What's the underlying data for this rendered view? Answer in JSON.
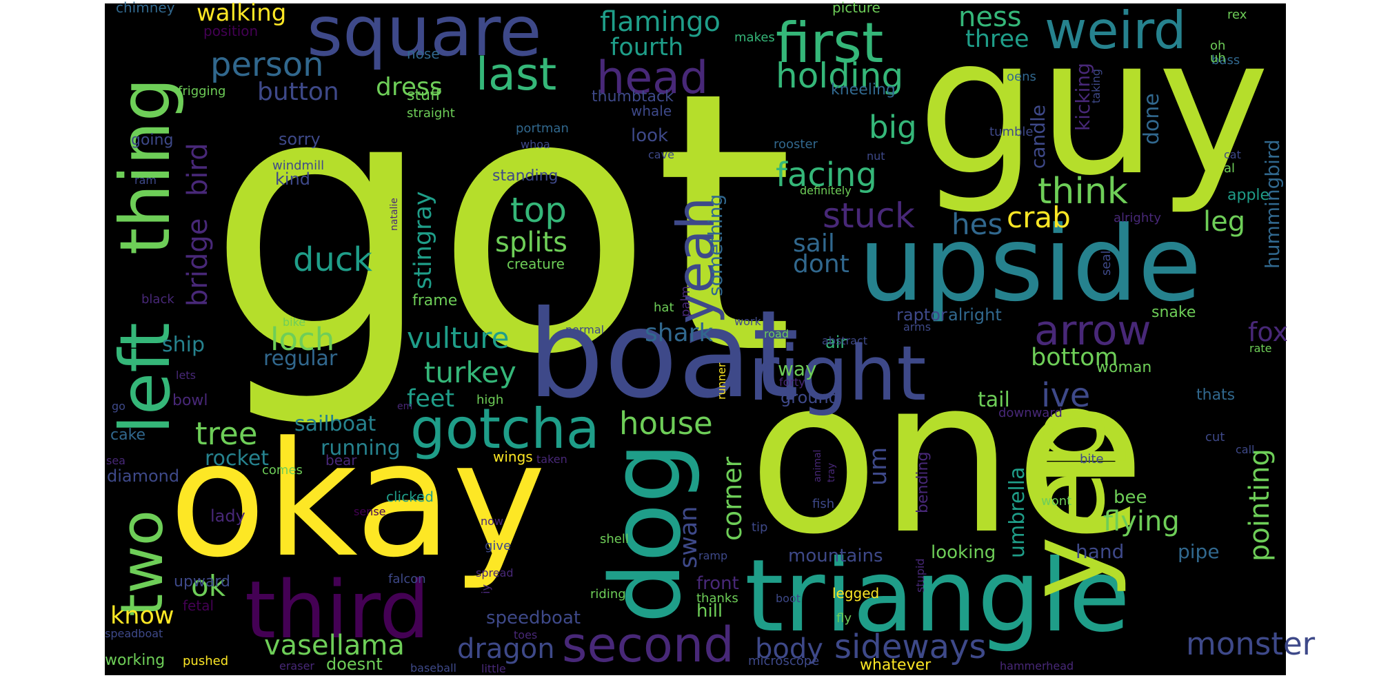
{
  "palette": {
    "yellow": "#fde725",
    "lime": "#b5de2b",
    "green": "#6ece58",
    "sea": "#35b779",
    "teal": "#1f9e89",
    "cyan": "#26828e",
    "blue": "#31688e",
    "indigo": "#3e4989",
    "purple": "#482878",
    "violet": "#440154",
    "background": "#000000"
  },
  "words": [
    {
      "text": "got",
      "color": "lime"
    },
    {
      "text": "one",
      "color": "lime"
    },
    {
      "text": "guy",
      "color": "lime"
    },
    {
      "text": "okay",
      "color": "yellow"
    },
    {
      "text": "boat",
      "color": "indigo"
    },
    {
      "text": "upside",
      "color": "cyan"
    },
    {
      "text": "triangle",
      "color": "teal"
    },
    {
      "text": "yep",
      "color": "lime"
    },
    {
      "text": "dog",
      "color": "teal"
    },
    {
      "text": "left",
      "color": "sea"
    },
    {
      "text": "thing",
      "color": "green"
    },
    {
      "text": "third",
      "color": "violet"
    },
    {
      "text": "square",
      "color": "indigo"
    },
    {
      "text": "right",
      "color": "indigo"
    },
    {
      "text": "first",
      "color": "sea"
    },
    {
      "text": "weird",
      "color": "cyan"
    },
    {
      "text": "two",
      "color": "green"
    },
    {
      "text": "yeah",
      "color": "indigo"
    },
    {
      "text": "gotcha",
      "color": "teal"
    },
    {
      "text": "last",
      "color": "sea"
    },
    {
      "text": "head",
      "color": "purple"
    },
    {
      "text": "second",
      "color": "purple"
    },
    {
      "text": "arrow",
      "color": "purple"
    },
    {
      "text": "person",
      "color": "blue"
    },
    {
      "text": "flamingo",
      "color": "teal"
    },
    {
      "text": "holding",
      "color": "sea"
    },
    {
      "text": "facing",
      "color": "sea"
    },
    {
      "text": "think",
      "color": "green"
    },
    {
      "text": "stuck",
      "color": "purple"
    },
    {
      "text": "top",
      "color": "sea"
    },
    {
      "text": "splits",
      "color": "green"
    },
    {
      "text": "duck",
      "color": "teal"
    },
    {
      "text": "loch",
      "color": "green"
    },
    {
      "text": "crab",
      "color": "yellow"
    },
    {
      "text": "leg",
      "color": "green"
    },
    {
      "text": "hes",
      "color": "blue"
    },
    {
      "text": "big",
      "color": "sea"
    },
    {
      "text": "ness",
      "color": "sea"
    },
    {
      "text": "three",
      "color": "teal"
    },
    {
      "text": "walking",
      "color": "yellow"
    },
    {
      "text": "fourth",
      "color": "teal"
    },
    {
      "text": "button",
      "color": "indigo"
    },
    {
      "text": "dress",
      "color": "green"
    },
    {
      "text": "bird",
      "color": "purple"
    },
    {
      "text": "bridge",
      "color": "purple"
    },
    {
      "text": "stingray",
      "color": "teal"
    },
    {
      "text": "vulture",
      "color": "teal"
    },
    {
      "text": "turkey",
      "color": "sea"
    },
    {
      "text": "regular",
      "color": "blue"
    },
    {
      "text": "sail",
      "color": "blue"
    },
    {
      "text": "dont",
      "color": "blue"
    },
    {
      "text": "shark",
      "color": "blue"
    },
    {
      "text": "corner",
      "color": "green"
    },
    {
      "text": "umbrella",
      "color": "teal"
    },
    {
      "text": "pointing",
      "color": "green"
    },
    {
      "text": "house",
      "color": "green"
    },
    {
      "text": "tree",
      "color": "green"
    },
    {
      "text": "ive",
      "color": "indigo"
    },
    {
      "text": "bottom",
      "color": "green"
    },
    {
      "text": "fox",
      "color": "purple"
    },
    {
      "text": "monster",
      "color": "indigo"
    },
    {
      "text": "sideways",
      "color": "indigo"
    },
    {
      "text": "body",
      "color": "indigo"
    },
    {
      "text": "dragon",
      "color": "indigo"
    },
    {
      "text": "vasellama",
      "color": "green"
    },
    {
      "text": "swan",
      "color": "indigo"
    },
    {
      "text": "flying",
      "color": "green"
    },
    {
      "text": "hummingbird",
      "color": "blue"
    },
    {
      "text": "something",
      "color": "blue"
    },
    {
      "text": "done",
      "color": "blue"
    },
    {
      "text": "kicking",
      "color": "purple"
    },
    {
      "text": "candle",
      "color": "indigo"
    },
    {
      "text": "ok",
      "color": "green"
    },
    {
      "text": "know",
      "color": "yellow"
    },
    {
      "text": "feet",
      "color": "teal"
    },
    {
      "text": "sailboat",
      "color": "cyan"
    },
    {
      "text": "running",
      "color": "cyan"
    },
    {
      "text": "rocket",
      "color": "cyan"
    },
    {
      "text": "tail",
      "color": "green"
    },
    {
      "text": "um",
      "color": "indigo"
    },
    {
      "text": "hand",
      "color": "indigo"
    },
    {
      "text": "pipe",
      "color": "blue"
    },
    {
      "text": "mountains",
      "color": "indigo"
    },
    {
      "text": "looking",
      "color": "green"
    },
    {
      "text": "bee",
      "color": "green"
    },
    {
      "text": "bending",
      "color": "purple"
    },
    {
      "text": "speedboat",
      "color": "indigo"
    },
    {
      "text": "front",
      "color": "purple"
    },
    {
      "text": "hill",
      "color": "green"
    },
    {
      "text": "ship",
      "color": "cyan"
    },
    {
      "text": "raptor",
      "color": "indigo"
    },
    {
      "text": "alright",
      "color": "blue"
    },
    {
      "text": "way",
      "color": "green"
    },
    {
      "text": "ground",
      "color": "indigo"
    },
    {
      "text": "woman",
      "color": "green"
    },
    {
      "text": "thats",
      "color": "blue"
    },
    {
      "text": "snake",
      "color": "green"
    },
    {
      "text": "air",
      "color": "sea"
    },
    {
      "text": "frame",
      "color": "green"
    },
    {
      "text": "creature",
      "color": "green"
    },
    {
      "text": "standing",
      "color": "indigo"
    },
    {
      "text": "look",
      "color": "indigo"
    },
    {
      "text": "thumbtack",
      "color": "indigo"
    },
    {
      "text": "whale",
      "color": "indigo"
    },
    {
      "text": "kneeling",
      "color": "blue"
    },
    {
      "text": "nose",
      "color": "blue"
    },
    {
      "text": "stuff",
      "color": "green"
    },
    {
      "text": "straight",
      "color": "green"
    },
    {
      "text": "sorry",
      "color": "indigo"
    },
    {
      "text": "kind",
      "color": "indigo"
    },
    {
      "text": "windmill",
      "color": "indigo"
    },
    {
      "text": "going",
      "color": "indigo"
    },
    {
      "text": "frigging",
      "color": "green"
    },
    {
      "text": "position",
      "color": "violet"
    },
    {
      "text": "chimney",
      "color": "blue"
    },
    {
      "text": "picture",
      "color": "green"
    },
    {
      "text": "makes",
      "color": "sea"
    },
    {
      "text": "rex",
      "color": "green"
    },
    {
      "text": "bass",
      "color": "blue"
    },
    {
      "text": "oh",
      "color": "green"
    },
    {
      "text": "uh",
      "color": "green"
    },
    {
      "text": "oens",
      "color": "blue"
    },
    {
      "text": "taking",
      "color": "indigo"
    },
    {
      "text": "tumble",
      "color": "indigo"
    },
    {
      "text": "rooster",
      "color": "blue"
    },
    {
      "text": "cave",
      "color": "indigo"
    },
    {
      "text": "nut",
      "color": "indigo"
    },
    {
      "text": "definitely",
      "color": "green"
    },
    {
      "text": "portman",
      "color": "blue"
    },
    {
      "text": "whoa",
      "color": "indigo"
    },
    {
      "text": "natalie",
      "color": "purple"
    },
    {
      "text": "ram",
      "color": "indigo"
    },
    {
      "text": "cat",
      "color": "indigo"
    },
    {
      "text": "al",
      "color": "green"
    },
    {
      "text": "apple",
      "color": "teal"
    },
    {
      "text": "alrighty",
      "color": "purple"
    },
    {
      "text": "seal",
      "color": "indigo"
    },
    {
      "text": "black",
      "color": "purple"
    },
    {
      "text": "palm",
      "color": "purple"
    },
    {
      "text": "hat",
      "color": "green"
    },
    {
      "text": "bike",
      "color": "green"
    },
    {
      "text": "work",
      "color": "indigo"
    },
    {
      "text": "road",
      "color": "green"
    },
    {
      "text": "normal",
      "color": "indigo"
    },
    {
      "text": "abstract",
      "color": "indigo"
    },
    {
      "text": "arms",
      "color": "indigo"
    },
    {
      "text": "forty",
      "color": "purple"
    },
    {
      "text": "rate",
      "color": "green"
    },
    {
      "text": "lets",
      "color": "purple"
    },
    {
      "text": "bowl",
      "color": "purple"
    },
    {
      "text": "runner",
      "color": "yellow"
    },
    {
      "text": "go",
      "color": "indigo"
    },
    {
      "text": "high",
      "color": "green"
    },
    {
      "text": "em",
      "color": "purple"
    },
    {
      "text": "downward",
      "color": "purple"
    },
    {
      "text": "cut",
      "color": "indigo"
    },
    {
      "text": "cake",
      "color": "blue"
    },
    {
      "text": "bear",
      "color": "purple"
    },
    {
      "text": "wings",
      "color": "yellow"
    },
    {
      "text": "taken",
      "color": "purple"
    },
    {
      "text": "sea",
      "color": "purple"
    },
    {
      "text": "comes",
      "color": "green"
    },
    {
      "text": "diamond",
      "color": "indigo"
    },
    {
      "text": "animal",
      "color": "purple"
    },
    {
      "text": "tray",
      "color": "purple"
    },
    {
      "text": "call",
      "color": "indigo"
    },
    {
      "text": "bite",
      "color": "indigo"
    },
    {
      "text": "clicked",
      "color": "teal"
    },
    {
      "text": "fish",
      "color": "indigo"
    },
    {
      "text": "wont",
      "color": "green"
    },
    {
      "text": "sense",
      "color": "violet"
    },
    {
      "text": "now",
      "color": "purple"
    },
    {
      "text": "lady",
      "color": "purple"
    },
    {
      "text": "give",
      "color": "indigo"
    },
    {
      "text": "tip",
      "color": "indigo"
    },
    {
      "text": "shell",
      "color": "green"
    },
    {
      "text": "spread",
      "color": "purple"
    },
    {
      "text": "ramp",
      "color": "indigo"
    },
    {
      "text": "stupid",
      "color": "purple"
    },
    {
      "text": "upward",
      "color": "indigo"
    },
    {
      "text": "falcon",
      "color": "indigo"
    },
    {
      "text": "iy",
      "color": "purple"
    },
    {
      "text": "riding",
      "color": "green"
    },
    {
      "text": "legged",
      "color": "yellow"
    },
    {
      "text": "fetal",
      "color": "violet"
    },
    {
      "text": "thanks",
      "color": "green"
    },
    {
      "text": "boot",
      "color": "indigo"
    },
    {
      "text": "fly",
      "color": "green"
    },
    {
      "text": "speadboat",
      "color": "indigo"
    },
    {
      "text": "toes",
      "color": "purple"
    },
    {
      "text": "working",
      "color": "green"
    },
    {
      "text": "pushed",
      "color": "yellow"
    },
    {
      "text": "doesnt",
      "color": "green"
    },
    {
      "text": "eraser",
      "color": "purple"
    },
    {
      "text": "baseball",
      "color": "indigo"
    },
    {
      "text": "little",
      "color": "purple"
    },
    {
      "text": "microscope",
      "color": "indigo"
    },
    {
      "text": "whatever",
      "color": "yellow"
    },
    {
      "text": "hammerhead",
      "color": "purple"
    }
  ]
}
